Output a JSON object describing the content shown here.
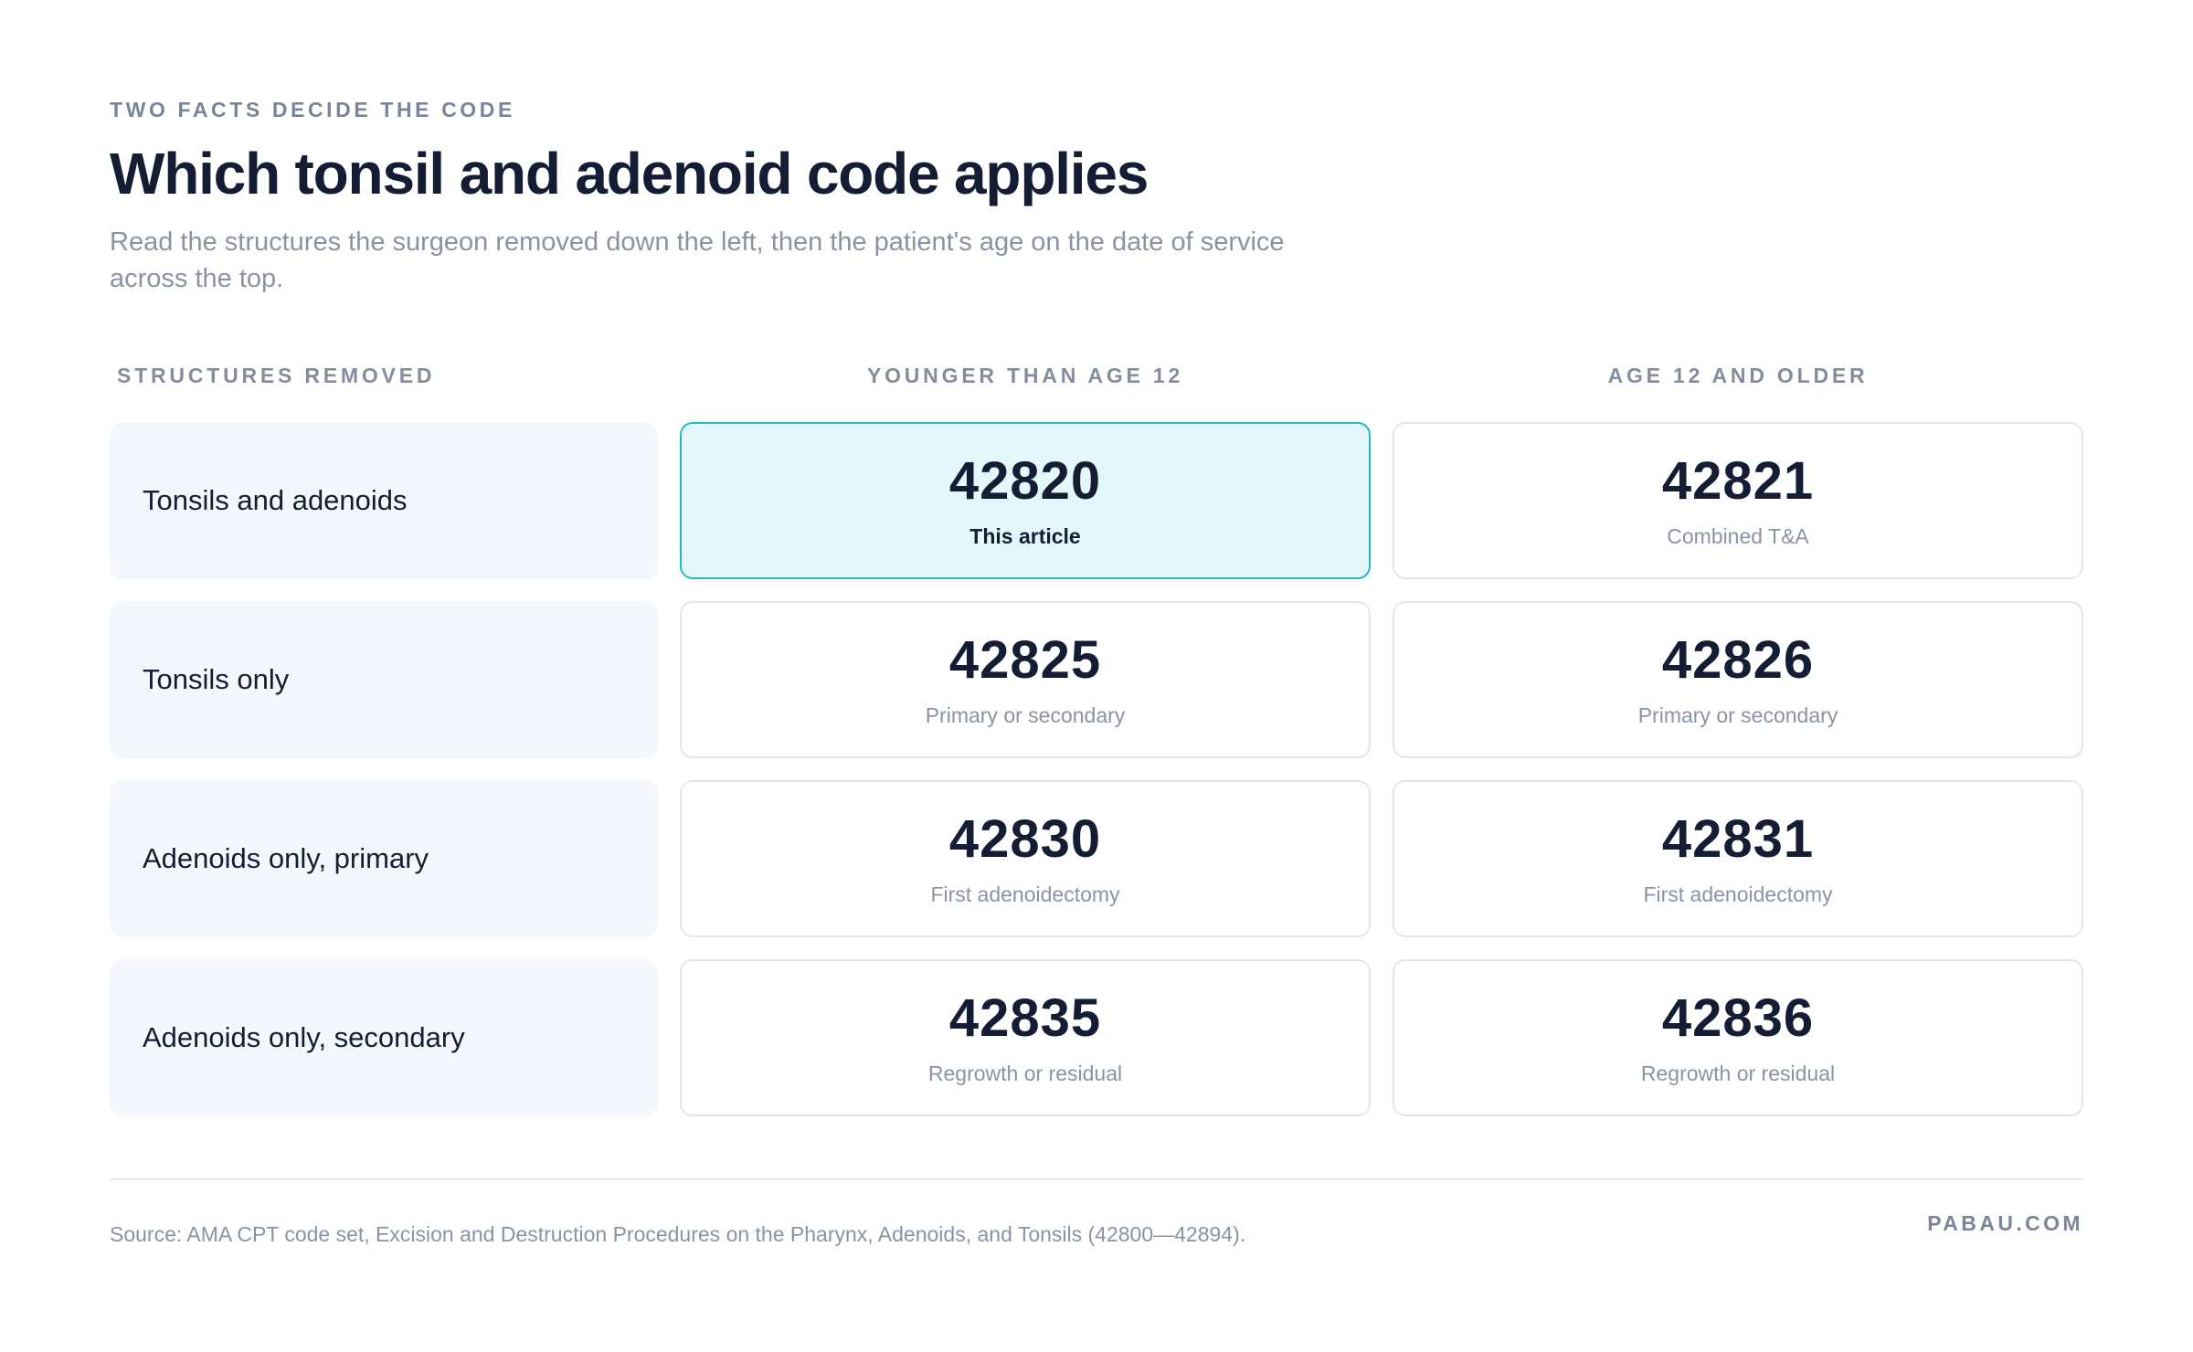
{
  "header": {
    "eyebrow": "TWO FACTS DECIDE THE CODE",
    "title": "Which tonsil and adenoid code applies",
    "subtitle": "Read the structures the surgeon removed down the left, then the patient's age on the date of service across the top."
  },
  "table": {
    "columns": {
      "structures": "STRUCTURES REMOVED",
      "under12": "YOUNGER THAN AGE 12",
      "over12": "AGE 12 AND OLDER"
    },
    "rows": [
      {
        "label": "Tonsils and adenoids",
        "under12": {
          "code": "42820",
          "note": "This article"
        },
        "over12": {
          "code": "42821",
          "note": "Combined T&A"
        }
      },
      {
        "label": "Tonsils only",
        "under12": {
          "code": "42825",
          "note": "Primary or secondary"
        },
        "over12": {
          "code": "42826",
          "note": "Primary or secondary"
        }
      },
      {
        "label": "Adenoids only, primary",
        "under12": {
          "code": "42830",
          "note": "First adenoidectomy"
        },
        "over12": {
          "code": "42831",
          "note": "First adenoidectomy"
        }
      },
      {
        "label": "Adenoids only, secondary",
        "under12": {
          "code": "42835",
          "note": "Regrowth or residual"
        },
        "over12": {
          "code": "42836",
          "note": "Regrowth or residual"
        }
      }
    ],
    "highlight_color": "#24b8c9",
    "highlight_fill": "#e4f7fb"
  },
  "footer": {
    "source": "Source: AMA CPT code set, Excision and Destruction Procedures on the Pharynx, Adenoids, and Tonsils (42800—42894).",
    "brand": "PABAU.COM"
  }
}
